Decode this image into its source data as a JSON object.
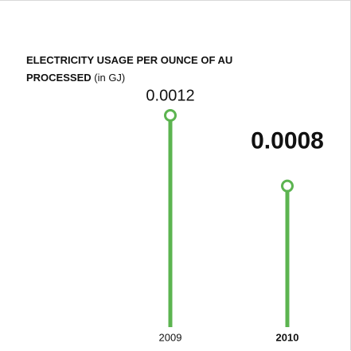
{
  "chart_data": {
    "type": "lollipop",
    "title": "ELECTRICITY USAGE PER OUNCE OF AU PROCESSED",
    "subtitle": "(in GJ)",
    "categories": [
      "2009",
      "2010"
    ],
    "values": [
      0.0012,
      0.0008
    ],
    "highlight": "2010",
    "color": "#5cb450"
  }
}
